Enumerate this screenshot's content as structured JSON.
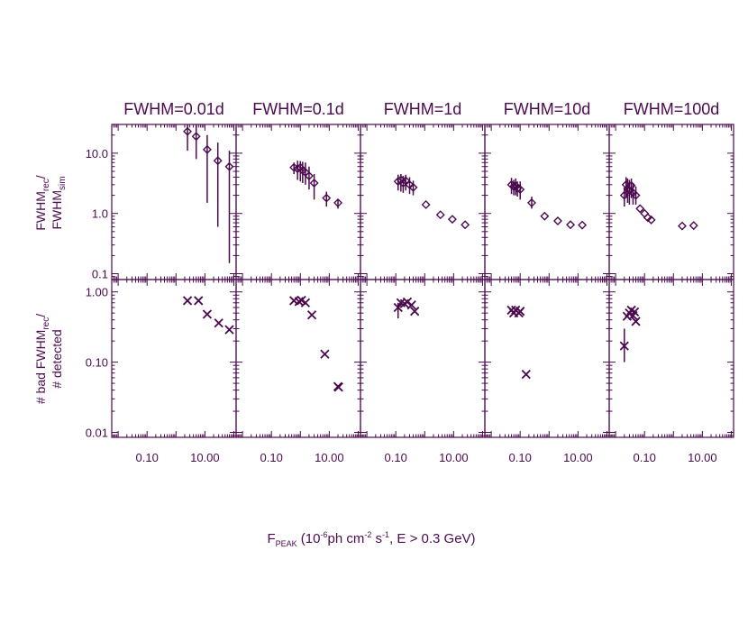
{
  "colors": {
    "ink": "#4b0a4e",
    "background": "#ffffff"
  },
  "figure": {
    "row_labels": {
      "top": {
        "line1": "FWHM",
        "line1_sub": "rec",
        "line1_tail": "/",
        "line2": "FWHM",
        "line2_sub": "sim"
      },
      "bottom": {
        "line1": "# bad FWHM",
        "line1_sub": "rec",
        "line1_tail": "/",
        "line2": "# detected"
      }
    },
    "xlabel": {
      "main": "F",
      "sub": "PEAK",
      "p1": " (10",
      "sup1": "-6",
      "p2": "ph cm",
      "sup2": "-2",
      "p3": " s",
      "sup3": "-1",
      "p4": ", E > 0.3 GeV)"
    }
  },
  "chart_data": [
    {
      "type": "scatter",
      "panel": "FWHM=0.01d",
      "title": "FWHM=0.01d",
      "x_scale": "log",
      "xlim": [
        0.006,
        120
      ],
      "xticks": [
        0.1,
        10.0
      ],
      "xtick_labels": [
        "0.10",
        "10.00"
      ],
      "top": {
        "marker": "diamond",
        "y_scale": "log",
        "ylim": [
          0.08,
          30
        ],
        "yticks": [
          0.1,
          1.0,
          10.0
        ],
        "ytick_labels": [
          "0.1",
          "1.0",
          "10.0"
        ],
        "points": [
          {
            "x": 2.5,
            "y": 23,
            "lo": 11,
            "hi": 30
          },
          {
            "x": 5,
            "y": 19,
            "lo": 8,
            "hi": 30
          },
          {
            "x": 12,
            "y": 11.5,
            "lo": 1.5,
            "hi": 20
          },
          {
            "x": 28,
            "y": 7.5,
            "lo": 0.6,
            "hi": 15
          },
          {
            "x": 70,
            "y": 6,
            "lo": 0.15,
            "hi": 11
          }
        ]
      },
      "bottom": {
        "marker": "x",
        "y_scale": "log",
        "ylim": [
          0.0085,
          1.5
        ],
        "yticks": [
          0.01,
          0.1,
          1.0
        ],
        "ytick_labels": [
          "0.01",
          "0.10",
          "1.00"
        ],
        "points": [
          {
            "x": 2.5,
            "y": 0.75
          },
          {
            "x": 6,
            "y": 0.75
          },
          {
            "x": 12,
            "y": 0.48
          },
          {
            "x": 30,
            "y": 0.36
          },
          {
            "x": 70,
            "y": 0.29
          }
        ]
      }
    },
    {
      "type": "scatter",
      "panel": "FWHM=0.1d",
      "title": "FWHM=0.1d",
      "x_scale": "log",
      "xlim": [
        0.006,
        120
      ],
      "xticks": [
        0.1,
        10.0
      ],
      "xtick_labels": [
        "0.10",
        "10.00"
      ],
      "top": {
        "marker": "diamond",
        "y_scale": "log",
        "ylim": [
          0.08,
          30
        ],
        "yticks": [
          0.1,
          1.0,
          10.0
        ],
        "ytick_labels": [
          "0.1",
          "1.0",
          "10.0"
        ],
        "points": [
          {
            "x": 0.6,
            "y": 5.8,
            "lo": 4.5,
            "hi": 7
          },
          {
            "x": 0.8,
            "y": 5.5,
            "lo": 3.6,
            "hi": 7.5
          },
          {
            "x": 1.0,
            "y": 5.8,
            "lo": 3.4,
            "hi": 7.4
          },
          {
            "x": 1.2,
            "y": 5.2,
            "lo": 3.2,
            "hi": 7.2
          },
          {
            "x": 1.5,
            "y": 4.8,
            "lo": 3.0,
            "hi": 7
          },
          {
            "x": 2.0,
            "y": 4.2,
            "lo": 2.5,
            "hi": 6
          },
          {
            "x": 3.0,
            "y": 3.2,
            "lo": 1.7,
            "hi": 4.5
          },
          {
            "x": 8,
            "y": 1.8,
            "lo": 1.3,
            "hi": 2.3
          },
          {
            "x": 20,
            "y": 1.5,
            "lo": 1.2,
            "hi": 1.7
          }
        ]
      },
      "bottom": {
        "marker": "x",
        "y_scale": "log",
        "ylim": [
          0.0085,
          1.5
        ],
        "yticks": [
          0.01,
          0.1,
          1.0
        ],
        "ytick_labels": [
          "0.01",
          "0.10",
          "1.00"
        ],
        "points": [
          {
            "x": 0.6,
            "y": 0.75
          },
          {
            "x": 0.9,
            "y": 0.73
          },
          {
            "x": 1.1,
            "y": 0.76
          },
          {
            "x": 1.5,
            "y": 0.7
          },
          {
            "x": 2.5,
            "y": 0.47
          },
          {
            "x": 7,
            "y": 0.13
          },
          {
            "x": 20,
            "y": 0.045
          },
          {
            "x": 21,
            "y": 0.044
          }
        ]
      }
    },
    {
      "type": "scatter",
      "panel": "FWHM=1d",
      "title": "FWHM=1d",
      "x_scale": "log",
      "xlim": [
        0.006,
        120
      ],
      "xticks": [
        0.1,
        10.0
      ],
      "xtick_labels": [
        "0.10",
        "10.00"
      ],
      "top": {
        "marker": "diamond",
        "y_scale": "log",
        "ylim": [
          0.08,
          30
        ],
        "yticks": [
          0.1,
          1.0,
          10.0
        ],
        "ytick_labels": [
          "0.1",
          "1.0",
          "10.0"
        ],
        "points": [
          {
            "x": 0.12,
            "y": 3.4,
            "lo": 2.4,
            "hi": 4.4
          },
          {
            "x": 0.15,
            "y": 3.6,
            "lo": 2.3,
            "hi": 4.5
          },
          {
            "x": 0.18,
            "y": 3.2,
            "lo": 2.2,
            "hi": 4.2
          },
          {
            "x": 0.22,
            "y": 3.5,
            "lo": 2.4,
            "hi": 4.4
          },
          {
            "x": 0.3,
            "y": 3.0,
            "lo": 2.1,
            "hi": 4.0
          },
          {
            "x": 0.4,
            "y": 2.7,
            "lo": 2.0,
            "hi": 3.5
          },
          {
            "x": 1.1,
            "y": 1.4
          },
          {
            "x": 3.5,
            "y": 0.95
          },
          {
            "x": 9,
            "y": 0.8
          },
          {
            "x": 25,
            "y": 0.65
          }
        ]
      },
      "bottom": {
        "marker": "x",
        "y_scale": "log",
        "ylim": [
          0.0085,
          1.5
        ],
        "yticks": [
          0.01,
          0.1,
          1.0
        ],
        "ytick_labels": [
          "0.01",
          "0.10",
          "1.00"
        ],
        "points": [
          {
            "x": 0.12,
            "y": 0.6,
            "lo": 0.42,
            "hi": 0.7
          },
          {
            "x": 0.15,
            "y": 0.7
          },
          {
            "x": 0.2,
            "y": 0.68
          },
          {
            "x": 0.25,
            "y": 0.72
          },
          {
            "x": 0.35,
            "y": 0.65
          },
          {
            "x": 0.45,
            "y": 0.53
          }
        ]
      }
    },
    {
      "type": "scatter",
      "panel": "FWHM=10d",
      "title": "FWHM=10d",
      "x_scale": "log",
      "xlim": [
        0.006,
        120
      ],
      "xticks": [
        0.1,
        10.0
      ],
      "xtick_labels": [
        "0.10",
        "10.00"
      ],
      "top": {
        "marker": "diamond",
        "y_scale": "log",
        "ylim": [
          0.08,
          30
        ],
        "yticks": [
          0.1,
          1.0,
          10.0
        ],
        "ytick_labels": [
          "0.1",
          "1.0",
          "10.0"
        ],
        "points": [
          {
            "x": 0.05,
            "y": 3.0,
            "lo": 2.1,
            "hi": 3.9
          },
          {
            "x": 0.06,
            "y": 2.8,
            "lo": 2.0,
            "hi": 3.6
          },
          {
            "x": 0.07,
            "y": 2.9,
            "lo": 2.0,
            "hi": 3.8
          },
          {
            "x": 0.08,
            "y": 2.6,
            "lo": 1.9,
            "hi": 3.4
          },
          {
            "x": 0.1,
            "y": 2.5,
            "lo": 1.7,
            "hi": 3.4
          },
          {
            "x": 0.25,
            "y": 1.5,
            "lo": 1.2,
            "hi": 1.9
          },
          {
            "x": 0.7,
            "y": 0.9
          },
          {
            "x": 2.0,
            "y": 0.75
          },
          {
            "x": 5.5,
            "y": 0.65
          },
          {
            "x": 14,
            "y": 0.64
          }
        ]
      },
      "bottom": {
        "marker": "x",
        "y_scale": "log",
        "ylim": [
          0.0085,
          1.5
        ],
        "yticks": [
          0.01,
          0.1,
          1.0
        ],
        "ytick_labels": [
          "0.01",
          "0.10",
          "1.00"
        ],
        "points": [
          {
            "x": 0.05,
            "y": 0.55
          },
          {
            "x": 0.06,
            "y": 0.5
          },
          {
            "x": 0.07,
            "y": 0.55
          },
          {
            "x": 0.09,
            "y": 0.5
          },
          {
            "x": 0.1,
            "y": 0.53
          },
          {
            "x": 0.16,
            "y": 0.067
          }
        ]
      }
    },
    {
      "type": "scatter",
      "panel": "FWHM=100d",
      "title": "FWHM=100d",
      "x_scale": "log",
      "xlim": [
        0.006,
        120
      ],
      "xticks": [
        0.1,
        10.0
      ],
      "xtick_labels": [
        "0.10",
        "10.00"
      ],
      "top": {
        "marker": "diamond",
        "y_scale": "log",
        "ylim": [
          0.08,
          30
        ],
        "yticks": [
          0.1,
          1.0,
          10.0
        ],
        "ytick_labels": [
          "0.1",
          "1.0",
          "10.0"
        ],
        "points": [
          {
            "x": 0.02,
            "y": 2.0,
            "lo": 1.3,
            "hi": 2.7
          },
          {
            "x": 0.023,
            "y": 3.0,
            "lo": 1.8,
            "hi": 4.0
          },
          {
            "x": 0.026,
            "y": 2.6,
            "lo": 1.5,
            "hi": 3.8
          },
          {
            "x": 0.03,
            "y": 2.4,
            "lo": 1.4,
            "hi": 3.6
          },
          {
            "x": 0.035,
            "y": 2.9,
            "lo": 1.8,
            "hi": 3.8
          },
          {
            "x": 0.04,
            "y": 2.2,
            "lo": 1.4,
            "hi": 3.2
          },
          {
            "x": 0.05,
            "y": 2.0,
            "lo": 1.4,
            "hi": 2.8
          },
          {
            "x": 0.07,
            "y": 1.2
          },
          {
            "x": 0.1,
            "y": 1.0
          },
          {
            "x": 0.13,
            "y": 0.85
          },
          {
            "x": 0.17,
            "y": 0.78
          },
          {
            "x": 2.0,
            "y": 0.62
          },
          {
            "x": 5.0,
            "y": 0.63
          }
        ]
      },
      "bottom": {
        "marker": "x",
        "y_scale": "log",
        "ylim": [
          0.0085,
          1.5
        ],
        "yticks": [
          0.01,
          0.1,
          1.0
        ],
        "ytick_labels": [
          "0.01",
          "0.10",
          "1.00"
        ],
        "points": [
          {
            "x": 0.02,
            "y": 0.17,
            "lo": 0.1,
            "hi": 0.3
          },
          {
            "x": 0.025,
            "y": 0.45
          },
          {
            "x": 0.03,
            "y": 0.5
          },
          {
            "x": 0.035,
            "y": 0.55
          },
          {
            "x": 0.04,
            "y": 0.46
          },
          {
            "x": 0.045,
            "y": 0.52
          },
          {
            "x": 0.05,
            "y": 0.38
          }
        ]
      }
    }
  ]
}
